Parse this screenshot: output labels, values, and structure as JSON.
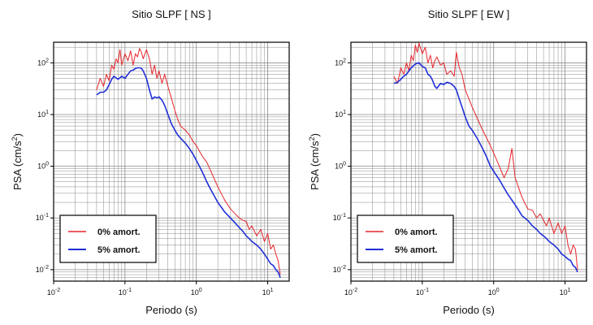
{
  "chart_data": [
    {
      "type": "line",
      "title": "Sitio SLPF [ NS ]",
      "xlabel": "Periodo (s)",
      "ylabel": "PSA (cm/s²)",
      "ylabel_base": "PSA (cm/s",
      "ylabel_sup": "2",
      "ylabel_end": ")",
      "x_scale": "log",
      "y_scale": "log",
      "xlim": [
        0.01,
        20
      ],
      "ylim": [
        0.006,
        250
      ],
      "x_ticks": [
        {
          "value": 0.01,
          "base": "10",
          "exp": "-2"
        },
        {
          "value": 0.1,
          "base": "10",
          "exp": "-1"
        },
        {
          "value": 1,
          "base": "10",
          "exp": "0"
        },
        {
          "value": 10,
          "base": "10",
          "exp": "1"
        }
      ],
      "y_ticks": [
        {
          "value": 0.01,
          "base": "10",
          "exp": "-2"
        },
        {
          "value": 0.1,
          "base": "10",
          "exp": "-1"
        },
        {
          "value": 1,
          "base": "10",
          "exp": "0"
        },
        {
          "value": 10,
          "base": "10",
          "exp": "1"
        },
        {
          "value": 100,
          "base": "10",
          "exp": "2"
        }
      ],
      "grid": true,
      "legend_position": "bottom-left",
      "series": [
        {
          "name": "0% amort.",
          "color": "#e8242b",
          "x": [
            0.04,
            0.045,
            0.05,
            0.055,
            0.06,
            0.065,
            0.07,
            0.075,
            0.08,
            0.085,
            0.09,
            0.1,
            0.11,
            0.12,
            0.13,
            0.14,
            0.15,
            0.16,
            0.17,
            0.18,
            0.2,
            0.22,
            0.24,
            0.26,
            0.28,
            0.3,
            0.33,
            0.36,
            0.4,
            0.45,
            0.5,
            0.55,
            0.6,
            0.7,
            0.8,
            0.9,
            1.0,
            1.2,
            1.4,
            1.6,
            2.0,
            2.5,
            3.0,
            3.5,
            4.0,
            4.5,
            5.0,
            5.5,
            6.0,
            7.0,
            8.0,
            9.0,
            10.0,
            11.0,
            12.0,
            13.0,
            14.0,
            15.0
          ],
          "y": [
            30,
            50,
            35,
            60,
            45,
            90,
            75,
            120,
            100,
            180,
            90,
            150,
            110,
            170,
            90,
            150,
            130,
            190,
            160,
            120,
            180,
            120,
            60,
            90,
            50,
            70,
            40,
            60,
            35,
            20,
            12,
            8,
            6,
            5,
            4,
            3,
            2.5,
            1.6,
            1.2,
            0.8,
            0.4,
            0.22,
            0.15,
            0.12,
            0.1,
            0.09,
            0.085,
            0.06,
            0.07,
            0.045,
            0.06,
            0.035,
            0.05,
            0.025,
            0.03,
            0.02,
            0.015,
            0.008
          ]
        },
        {
          "name": "5% amort.",
          "color": "#1f2fd8",
          "x": [
            0.04,
            0.045,
            0.05,
            0.055,
            0.06,
            0.065,
            0.07,
            0.08,
            0.09,
            0.1,
            0.11,
            0.12,
            0.13,
            0.14,
            0.15,
            0.16,
            0.17,
            0.18,
            0.2,
            0.22,
            0.24,
            0.26,
            0.28,
            0.3,
            0.33,
            0.36,
            0.4,
            0.45,
            0.5,
            0.55,
            0.6,
            0.7,
            0.8,
            0.9,
            1.0,
            1.2,
            1.4,
            1.6,
            2.0,
            2.5,
            3.0,
            3.5,
            4.0,
            4.5,
            5.0,
            5.5,
            6.0,
            7.0,
            8.0,
            9.0,
            10.0,
            11.0,
            12.0,
            13.0,
            14.0,
            15.0
          ],
          "y": [
            24,
            27,
            27,
            30,
            38,
            48,
            55,
            48,
            55,
            50,
            60,
            70,
            72,
            78,
            80,
            80,
            78,
            70,
            50,
            30,
            20,
            22,
            21,
            22,
            19,
            15,
            10,
            6.5,
            5,
            4,
            3.5,
            2.8,
            2.2,
            1.7,
            1.3,
            0.8,
            0.5,
            0.35,
            0.2,
            0.13,
            0.1,
            0.08,
            0.065,
            0.055,
            0.045,
            0.04,
            0.035,
            0.03,
            0.025,
            0.02,
            0.016,
            0.013,
            0.012,
            0.01,
            0.009,
            0.007
          ]
        }
      ]
    },
    {
      "type": "line",
      "title": "Sitio SLPF [ EW ]",
      "xlabel": "Periodo (s)",
      "ylabel": "PSA (cm/s²)",
      "ylabel_base": "PSA (cm/s",
      "ylabel_sup": "2",
      "ylabel_end": ")",
      "x_scale": "log",
      "y_scale": "log",
      "xlim": [
        0.01,
        20
      ],
      "ylim": [
        0.006,
        250
      ],
      "x_ticks": [
        {
          "value": 0.01,
          "base": "10",
          "exp": "-2"
        },
        {
          "value": 0.1,
          "base": "10",
          "exp": "-1"
        },
        {
          "value": 1,
          "base": "10",
          "exp": "0"
        },
        {
          "value": 10,
          "base": "10",
          "exp": "1"
        }
      ],
      "y_ticks": [
        {
          "value": 0.01,
          "base": "10",
          "exp": "-2"
        },
        {
          "value": 0.1,
          "base": "10",
          "exp": "-1"
        },
        {
          "value": 1,
          "base": "10",
          "exp": "0"
        },
        {
          "value": 10,
          "base": "10",
          "exp": "1"
        },
        {
          "value": 100,
          "base": "10",
          "exp": "2"
        }
      ],
      "grid": true,
      "legend_position": "bottom-left",
      "series": [
        {
          "name": "0% amort.",
          "color": "#e8242b",
          "x": [
            0.04,
            0.045,
            0.05,
            0.055,
            0.06,
            0.065,
            0.07,
            0.075,
            0.08,
            0.085,
            0.09,
            0.1,
            0.11,
            0.12,
            0.13,
            0.14,
            0.15,
            0.16,
            0.18,
            0.2,
            0.22,
            0.25,
            0.28,
            0.3,
            0.33,
            0.36,
            0.4,
            0.45,
            0.5,
            0.6,
            0.7,
            0.8,
            0.9,
            1.0,
            1.2,
            1.4,
            1.6,
            1.8,
            2.0,
            2.5,
            3.0,
            3.5,
            4.0,
            4.5,
            5.0,
            5.5,
            6.0,
            7.0,
            8.0,
            9.0,
            10.0,
            11.0,
            12.0,
            13.0,
            14.0,
            15.0
          ],
          "y": [
            55,
            40,
            80,
            60,
            100,
            70,
            140,
            110,
            220,
            160,
            240,
            150,
            200,
            100,
            140,
            80,
            110,
            130,
            90,
            100,
            60,
            70,
            55,
            160,
            80,
            60,
            30,
            20,
            14,
            8,
            5,
            3.5,
            2.5,
            1.8,
            1.0,
            0.6,
            0.9,
            2.2,
            0.6,
            0.25,
            0.15,
            0.14,
            0.1,
            0.12,
            0.09,
            0.07,
            0.1,
            0.05,
            0.08,
            0.05,
            0.07,
            0.03,
            0.02,
            0.03,
            0.025,
            0.01
          ]
        },
        {
          "name": "5% amort.",
          "color": "#1f2fd8",
          "x": [
            0.04,
            0.045,
            0.05,
            0.055,
            0.06,
            0.07,
            0.08,
            0.09,
            0.1,
            0.11,
            0.12,
            0.13,
            0.14,
            0.15,
            0.16,
            0.18,
            0.2,
            0.22,
            0.25,
            0.28,
            0.3,
            0.33,
            0.36,
            0.4,
            0.45,
            0.5,
            0.6,
            0.7,
            0.8,
            0.9,
            1.0,
            1.2,
            1.4,
            1.6,
            2.0,
            2.5,
            3.0,
            3.5,
            4.0,
            4.5,
            5.0,
            5.5,
            6.0,
            7.0,
            8.0,
            9.0,
            10.0,
            11.0,
            12.0,
            13.0,
            14.0,
            15.0
          ],
          "y": [
            40,
            42,
            48,
            55,
            60,
            80,
            95,
            100,
            85,
            80,
            60,
            55,
            45,
            35,
            32,
            40,
            38,
            42,
            40,
            35,
            30,
            20,
            14,
            9,
            6,
            5,
            3.3,
            2.2,
            1.5,
            1.0,
            0.8,
            0.55,
            0.38,
            0.28,
            0.18,
            0.11,
            0.09,
            0.07,
            0.06,
            0.05,
            0.045,
            0.04,
            0.035,
            0.03,
            0.025,
            0.02,
            0.018,
            0.016,
            0.015,
            0.012,
            0.011,
            0.009
          ]
        }
      ]
    }
  ]
}
